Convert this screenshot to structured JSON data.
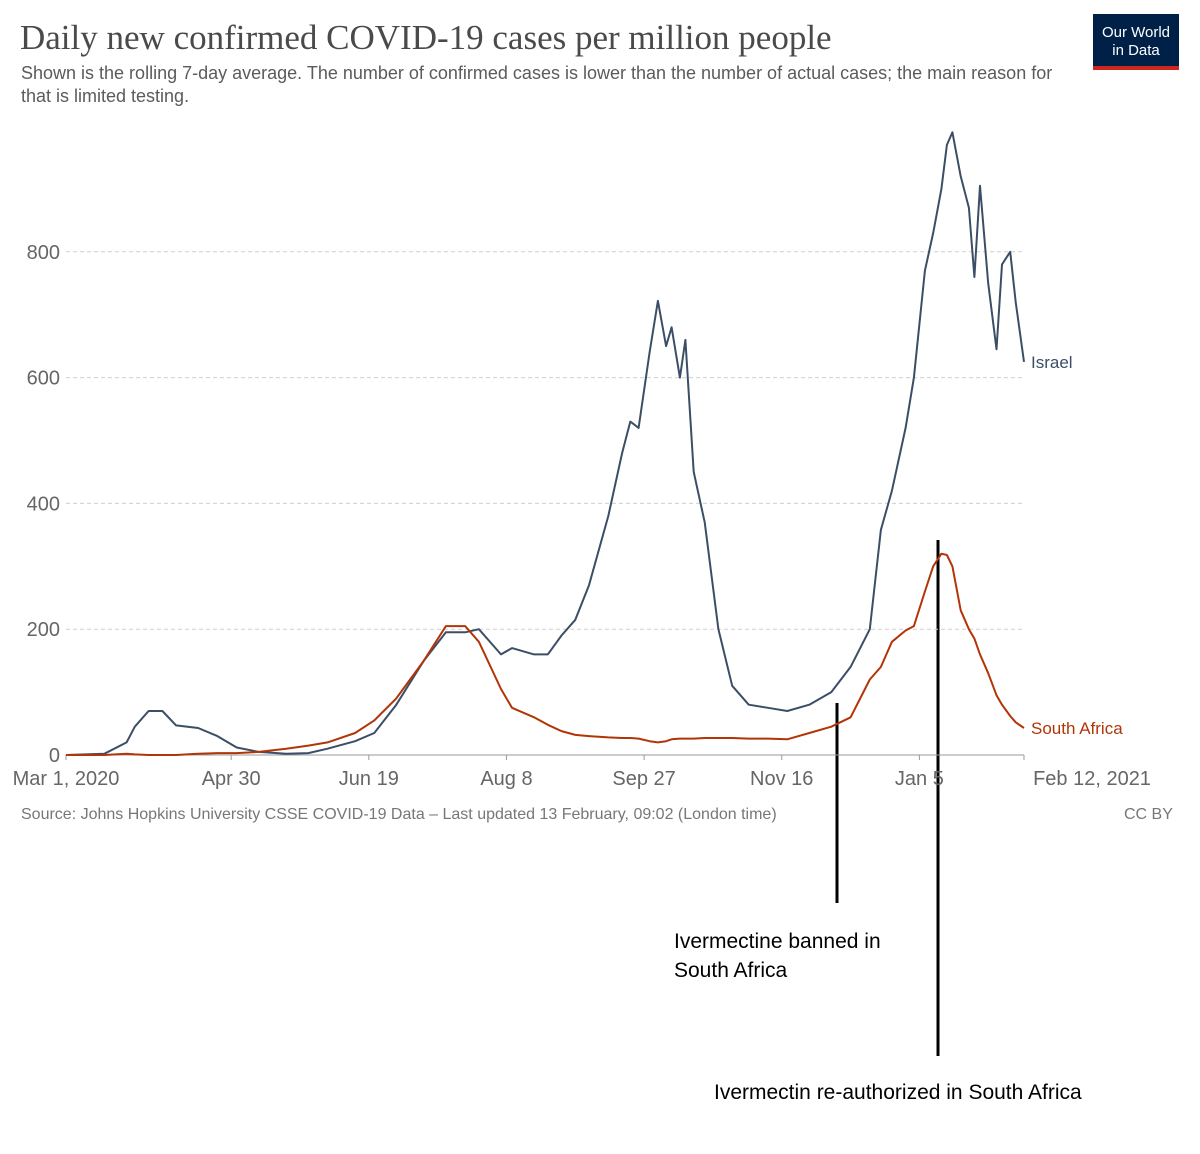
{
  "chart_data": {
    "type": "line",
    "title": "Daily new confirmed COVID-19 cases per million people",
    "subtitle": "Shown is the rolling 7-day average. The number of confirmed cases is lower than the number of actual cases; the main reason for that is limited testing.",
    "source": "Source: Johns Hopkins University CSSE COVID-19 Data – Last updated 13 February, 09:02 (London time)",
    "license": "CC BY",
    "logo": [
      "Our World",
      "in Data"
    ],
    "annotations": [
      [
        "Ivermectine banned in",
        "South Africa"
      ],
      [
        "Ivermectin  re-authorized in South Africa"
      ]
    ],
    "x": [
      "2020-03-01",
      "2020-03-15",
      "2020-03-23",
      "2020-03-26",
      "2020-03-31",
      "2020-04-05",
      "2020-04-10",
      "2020-04-18",
      "2020-04-25",
      "2020-05-02",
      "2020-05-10",
      "2020-05-20",
      "2020-05-28",
      "2020-06-04",
      "2020-06-14",
      "2020-06-21",
      "2020-06-29",
      "2020-07-09",
      "2020-07-17",
      "2020-07-24",
      "2020-07-29",
      "2020-08-06",
      "2020-08-10",
      "2020-08-18",
      "2020-08-23",
      "2020-08-28",
      "2020-09-02",
      "2020-09-07",
      "2020-09-14",
      "2020-09-19",
      "2020-09-22",
      "2020-09-25",
      "2020-09-29",
      "2020-10-02",
      "2020-10-05",
      "2020-10-07",
      "2020-10-10",
      "2020-10-12",
      "2020-10-15",
      "2020-10-19",
      "2020-10-24",
      "2020-10-29",
      "2020-11-04",
      "2020-11-11",
      "2020-11-18",
      "2020-11-26",
      "2020-12-04",
      "2020-12-11",
      "2020-12-18",
      "2020-12-22",
      "2020-12-26",
      "2020-12-31",
      "2021-01-03",
      "2021-01-07",
      "2021-01-10",
      "2021-01-13",
      "2021-01-15",
      "2021-01-17",
      "2021-01-20",
      "2021-01-23",
      "2021-01-25",
      "2021-01-27",
      "2021-01-30",
      "2021-02-02",
      "2021-02-04",
      "2021-02-07",
      "2021-02-09",
      "2021-02-12"
    ],
    "series": [
      {
        "name": "Israel",
        "color": "#3c4e66",
        "values": [
          0,
          2,
          20,
          45,
          70,
          70,
          47,
          43,
          30,
          12,
          5,
          2,
          3,
          10,
          22,
          35,
          80,
          150,
          195,
          195,
          200,
          160,
          170,
          160,
          160,
          190,
          215,
          270,
          380,
          480,
          530,
          520,
          640,
          722,
          650,
          680,
          600,
          660,
          450,
          370,
          200,
          110,
          80,
          75,
          70,
          80,
          100,
          140,
          200,
          358,
          420,
          520,
          600,
          770,
          830,
          900,
          970,
          990,
          920,
          870,
          760,
          905,
          750,
          645,
          780,
          800,
          720,
          625
        ]
      },
      {
        "name": "South Africa",
        "color": "#b13507",
        "values": [
          0,
          0,
          2,
          1,
          0,
          0,
          0,
          2,
          3,
          3,
          5,
          10,
          15,
          20,
          35,
          55,
          90,
          150,
          205,
          205,
          180,
          105,
          75,
          60,
          48,
          38,
          32,
          30,
          28,
          27,
          27,
          26,
          22,
          20,
          22,
          25,
          26,
          26,
          26,
          27,
          27,
          27,
          26,
          26,
          25,
          35,
          45,
          60,
          120,
          140,
          180,
          198,
          205,
          260,
          300,
          320,
          318,
          300,
          230,
          200,
          185,
          160,
          130,
          95,
          80,
          62,
          52,
          43
        ]
      }
    ],
    "xlim": [
      "2020-03-01",
      "2021-02-12"
    ],
    "xticks": [
      {
        "value": "2020-03-01",
        "label": "Mar 1, 2020"
      },
      {
        "value": "2020-04-30",
        "label": "Apr 30"
      },
      {
        "value": "2020-06-19",
        "label": "Jun 19"
      },
      {
        "value": "2020-08-08",
        "label": "Aug 8"
      },
      {
        "value": "2020-09-27",
        "label": "Sep 27"
      },
      {
        "value": "2020-11-16",
        "label": "Nov 16"
      },
      {
        "value": "2021-01-05",
        "label": "Jan 5"
      },
      {
        "value": "2021-02-12",
        "label": "Feb 12, 2021"
      }
    ],
    "ylim": [
      0,
      1000
    ],
    "yticks": [
      0,
      200,
      400,
      600,
      800
    ],
    "grid": true
  }
}
